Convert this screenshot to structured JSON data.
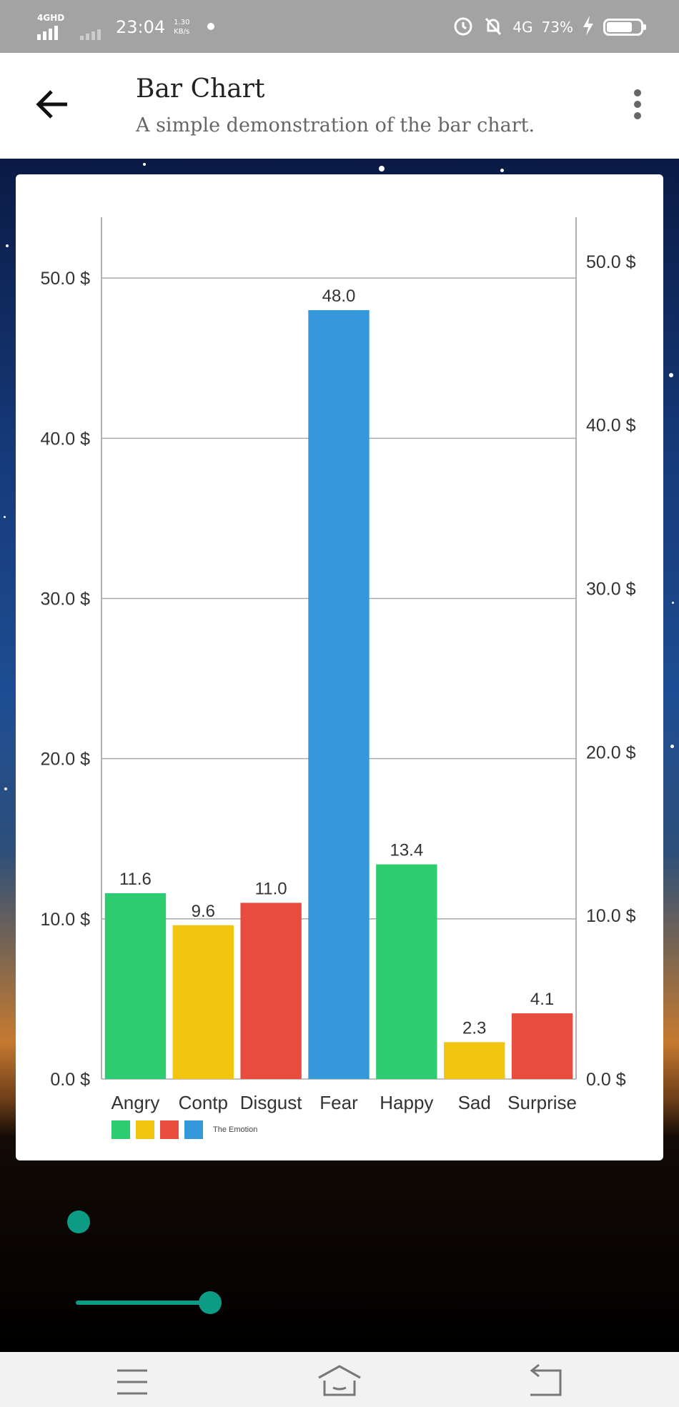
{
  "status_bar": {
    "network_label": "4GHD",
    "time": "23:04",
    "speed_value": "1.30",
    "speed_unit": "KB/s",
    "network_type": "4G",
    "battery": "73%"
  },
  "app_bar": {
    "title": "Bar Chart",
    "subtitle": "A simple demonstration of the bar chart."
  },
  "chart_data": {
    "type": "bar",
    "title": "",
    "xlabel": "",
    "ylabel": "",
    "categories": [
      "Angry",
      "Contp",
      "Disgust",
      "Fear",
      "Happy",
      "Sad",
      "Surprise"
    ],
    "values": [
      11.6,
      9.6,
      11.0,
      48.0,
      13.4,
      2.3,
      4.1
    ],
    "value_labels": [
      "11.6",
      "9.6",
      "11.0",
      "48.0",
      "13.4",
      "2.3",
      "4.1"
    ],
    "bar_colors": [
      "#2ecc71",
      "#f1c40f",
      "#e74c3c",
      "#3498db",
      "#2ecc71",
      "#f1c40f",
      "#e74c3c"
    ],
    "left_axis": {
      "ylim": [
        0,
        53.8
      ],
      "ticks": [
        0,
        10,
        20,
        30,
        40,
        50
      ],
      "tick_labels": [
        "0.0 $",
        "10.0 $",
        "20.0 $",
        "30.0 $",
        "40.0 $",
        "50.0 $"
      ]
    },
    "right_axis": {
      "ylim": [
        0,
        52.7
      ],
      "ticks": [
        0,
        10,
        20,
        30,
        40,
        50
      ],
      "tick_labels": [
        "0.0 $",
        "10.0 $",
        "20.0 $",
        "30.0 $",
        "40.0 $",
        "50.0 $"
      ]
    },
    "grid": true,
    "legend": {
      "placement": "bottom-left",
      "colors": [
        "#2ecc71",
        "#f1c40f",
        "#e74c3c",
        "#3498db"
      ],
      "label": "The Emotion"
    }
  },
  "sliders": [
    {
      "value": 0.0
    },
    {
      "value": 1.0
    }
  ],
  "colors": {
    "accent": "#0c9b84",
    "status_bar": "#a3a3a3"
  },
  "nav_bar": {
    "icons": [
      "menu-icon",
      "home-icon",
      "back-icon"
    ]
  }
}
